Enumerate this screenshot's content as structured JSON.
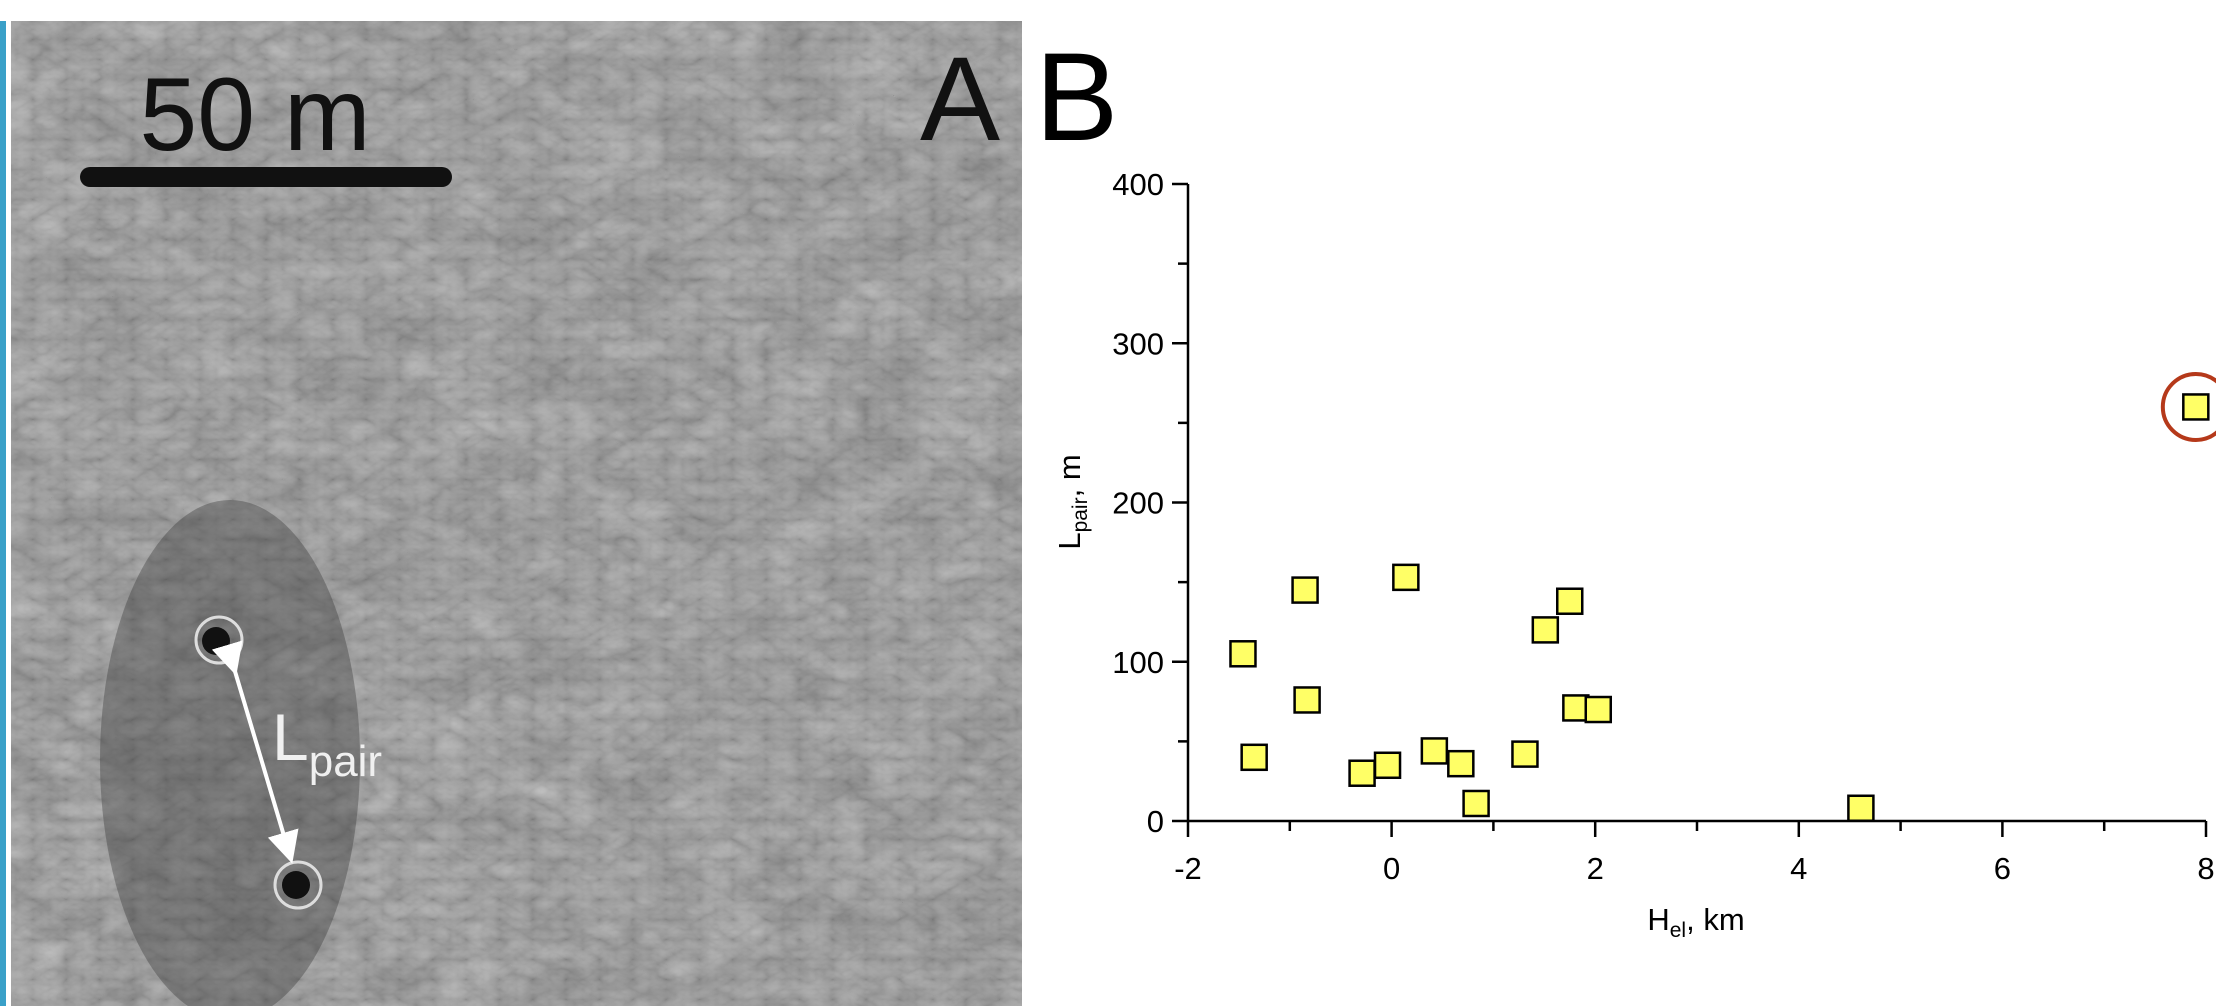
{
  "panel_a": {
    "label": "A",
    "scale_bar": "50 m",
    "annotation": {
      "main": "L",
      "sub": "pair"
    }
  },
  "chart_data": {
    "type": "scatter",
    "panel_label": "B",
    "xlabel": {
      "main": "H",
      "sub": "el",
      "rest": ", km"
    },
    "ylabel": {
      "main": "L",
      "sub": "pair",
      "rest": ", m"
    },
    "x": [
      -1.46,
      -1.35,
      -0.85,
      -0.83,
      -0.29,
      -0.04,
      0.14,
      0.42,
      0.68,
      0.83,
      1.31,
      1.51,
      1.75,
      1.81,
      2.03,
      4.61,
      7.9
    ],
    "values": [
      105,
      40,
      145,
      76,
      30,
      35,
      153,
      44,
      36,
      11,
      42,
      120,
      138,
      71,
      70,
      8,
      260
    ],
    "color": "#ffff66",
    "highlight": [
      16
    ],
    "highlight_color": "#b5391a",
    "xlim": [
      -2,
      8
    ],
    "xticks": [
      -2,
      0,
      2,
      4,
      6,
      8
    ],
    "xminorticks": [
      -1,
      1,
      3,
      5,
      7
    ],
    "ylim": [
      0,
      400
    ],
    "yticks": [
      0,
      100,
      200,
      300,
      400
    ],
    "yminorticks": [
      50,
      150,
      250,
      350
    ]
  }
}
